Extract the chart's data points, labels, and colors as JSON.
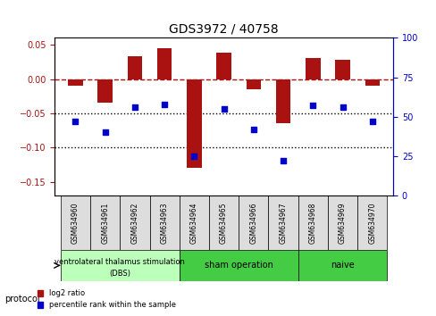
{
  "title": "GDS3972 / 40758",
  "samples": [
    "GSM634960",
    "GSM634961",
    "GSM634962",
    "GSM634963",
    "GSM634964",
    "GSM634965",
    "GSM634966",
    "GSM634967",
    "GSM634968",
    "GSM634969",
    "GSM634970"
  ],
  "log2_ratio": [
    -0.01,
    -0.035,
    0.033,
    0.045,
    -0.13,
    0.038,
    -0.015,
    -0.065,
    0.031,
    0.028,
    -0.01
  ],
  "percentile_rank": [
    47,
    40,
    56,
    58,
    25,
    55,
    42,
    22,
    57,
    56,
    47
  ],
  "bar_color": "#aa1111",
  "dot_color": "#0000cc",
  "ylim_left": [
    -0.17,
    0.06
  ],
  "ylim_right": [
    0,
    100
  ],
  "yticks_left": [
    0.05,
    0,
    -0.05,
    -0.1,
    -0.15
  ],
  "yticks_right": [
    100,
    75,
    50,
    25,
    0
  ],
  "hline_y": 0,
  "dotline1": -0.05,
  "dotline2": -0.1,
  "groups": [
    {
      "label": "ventrolateral thalamus stimulation\n(DBS)",
      "start": 0,
      "end": 3,
      "color": "#ccffcc"
    },
    {
      "label": "sham operation",
      "start": 4,
      "end": 7,
      "color": "#55dd55"
    },
    {
      "label": "naive",
      "start": 8,
      "end": 10,
      "color": "#55dd55"
    }
  ],
  "legend_bar_label": "log2 ratio",
  "legend_dot_label": "percentile rank within the sample",
  "protocol_label": "protocol",
  "bar_width": 0.5
}
